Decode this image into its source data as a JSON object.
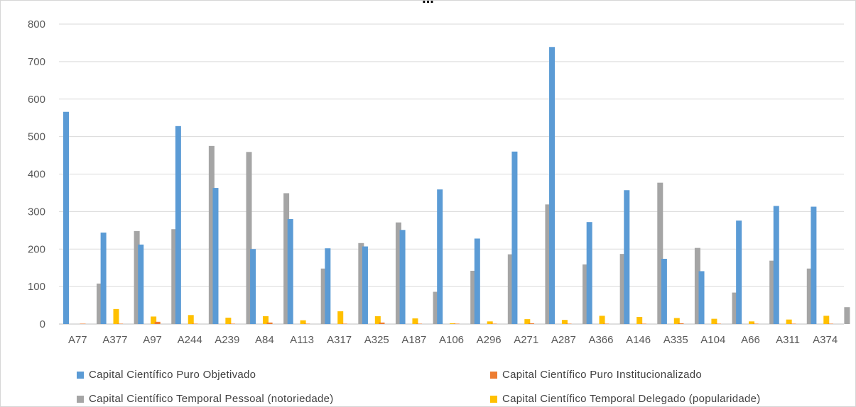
{
  "title_partial": "...",
  "chart_data": {
    "type": "bar",
    "title": "",
    "xlabel": "",
    "ylabel": "",
    "ylim": [
      0,
      800
    ],
    "yticks": [
      0,
      100,
      200,
      300,
      400,
      500,
      600,
      700,
      800
    ],
    "grid": true,
    "legend_position": "bottom",
    "categories": [
      "A77",
      "A377",
      "A97",
      "A244",
      "A239",
      "A84",
      "A113",
      "A317",
      "A325",
      "A187",
      "A106",
      "A296",
      "A271",
      "A287",
      "A366",
      "A146",
      "A335",
      "A104",
      "A66",
      "A311",
      "A374"
    ],
    "series": [
      {
        "name": "Capital Científico Puro Objetivado",
        "color": "#5b9bd5",
        "values": [
          566,
          244,
          212,
          528,
          363,
          200,
          280,
          202,
          207,
          251,
          359,
          228,
          460,
          739,
          272,
          357,
          174,
          141,
          276,
          315,
          313
        ]
      },
      {
        "name": "Capital Científico Puro Institucionalizado",
        "color": "#ed7d31",
        "values": [
          1,
          1,
          6,
          1,
          1,
          4,
          1,
          1,
          4,
          1,
          1,
          1,
          2,
          1,
          1,
          1,
          2,
          1,
          1,
          1,
          1
        ]
      },
      {
        "name": "Capital Científico Temporal Pessoal (notoriedade)",
        "color": "#a5a5a5",
        "values": [
          108,
          248,
          253,
          475,
          459,
          349,
          148,
          216,
          271,
          86,
          142,
          186,
          319,
          159,
          187,
          377,
          203,
          84,
          169,
          148,
          45
        ]
      },
      {
        "name": "Capital Científico Temporal Delegado (popularidade)",
        "color": "#ffc000",
        "values": [
          40,
          20,
          24,
          17,
          21,
          10,
          34,
          21,
          15,
          2,
          7,
          13,
          11,
          22,
          19,
          16,
          14,
          7,
          12,
          22,
          2
        ]
      }
    ]
  },
  "legend": [
    {
      "label": "Capital Científico Puro Objetivado",
      "color": "#5b9bd5"
    },
    {
      "label": "Capital Científico Puro Institucionalizado",
      "color": "#ed7d31"
    },
    {
      "label": "Capital Científico Temporal Pessoal (notoriedade)",
      "color": "#a5a5a5"
    },
    {
      "label": "Capital Científico Temporal Delegado (popularidade)",
      "color": "#ffc000"
    }
  ]
}
